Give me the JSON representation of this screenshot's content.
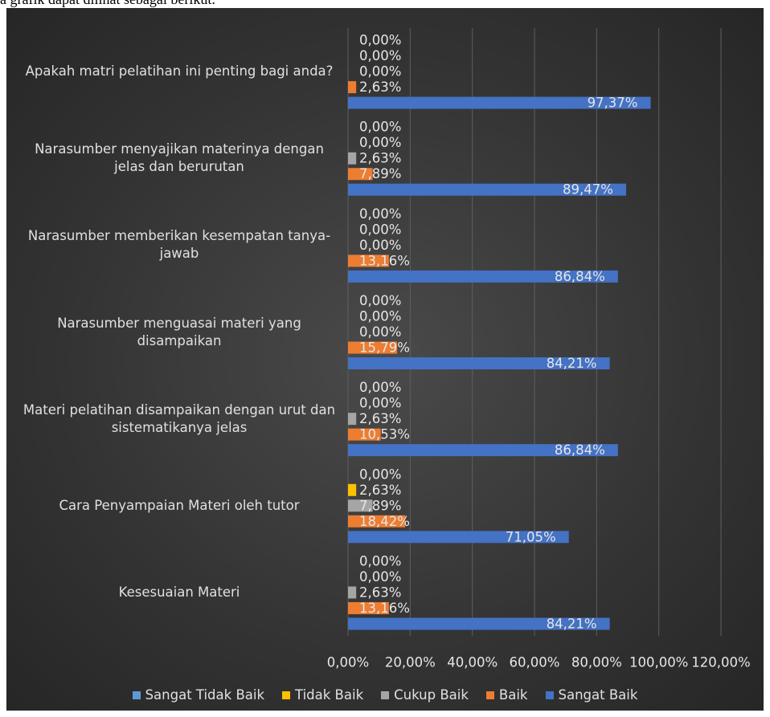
{
  "context_text": "a grafik dapat dilihat sebagai berikut.",
  "chart_data": {
    "type": "hbar",
    "categories": [
      "Apakah matri pelatihan ini penting bagi anda?",
      "Narasumber menyajikan materinya dengan jelas dan berurutan",
      "Narasumber memberikan kesempatan tanya-jawab",
      "Narasumber menguasai materi yang disampaikan",
      "Materi pelatihan disampaikan dengan urut dan sistematikanya jelas",
      "Cara Penyampaian Materi oleh tutor",
      "Kesesuaian Materi"
    ],
    "series": [
      {
        "name": "Sangat Tidak Baik",
        "color": "#5b9bd5",
        "values": [
          0,
          0,
          0,
          0,
          0,
          0,
          0
        ],
        "value_labels": [
          "0,00%",
          "0,00%",
          "0,00%",
          "0,00%",
          "0,00%",
          "0,00%",
          "0,00%"
        ]
      },
      {
        "name": "Tidak Baik",
        "color": "#ffc000",
        "values": [
          0,
          0,
          0,
          0,
          0,
          2.63,
          0
        ],
        "value_labels": [
          "0,00%",
          "0,00%",
          "0,00%",
          "0,00%",
          "0,00%",
          "2,63%",
          "0,00%"
        ]
      },
      {
        "name": "Cukup Baik",
        "color": "#a5a5a5",
        "values": [
          0,
          2.63,
          0,
          0,
          2.63,
          7.89,
          2.63
        ],
        "value_labels": [
          "0,00%",
          "2,63%",
          "0,00%",
          "0,00%",
          "2,63%",
          "7,89%",
          "2,63%"
        ]
      },
      {
        "name": "Baik",
        "color": "#ed7d31",
        "values": [
          2.63,
          7.89,
          13.16,
          15.79,
          10.53,
          18.42,
          13.16
        ],
        "value_labels": [
          "2,63%",
          "7,89%",
          "13,16%",
          "15,79%",
          "10,53%",
          "18,42%",
          "13,16%"
        ]
      },
      {
        "name": "Sangat Baik",
        "color": "#4472c4",
        "values": [
          97.37,
          89.47,
          86.84,
          84.21,
          86.84,
          71.05,
          84.21
        ],
        "value_labels": [
          "97,37%",
          "89,47%",
          "86,84%",
          "84,21%",
          "86,84%",
          "71,05%",
          "84,21%"
        ]
      }
    ],
    "xlim": [
      0,
      120
    ],
    "xticks": [
      {
        "value": 0,
        "label": "0,00%"
      },
      {
        "value": 20,
        "label": "20,00%"
      },
      {
        "value": 40,
        "label": "40,00%"
      },
      {
        "value": 60,
        "label": "60,00%"
      },
      {
        "value": 80,
        "label": "80,00%"
      },
      {
        "value": 100,
        "label": "100,00%"
      },
      {
        "value": 120,
        "label": "120,00%"
      }
    ],
    "grid": true,
    "legend": "bottom"
  }
}
